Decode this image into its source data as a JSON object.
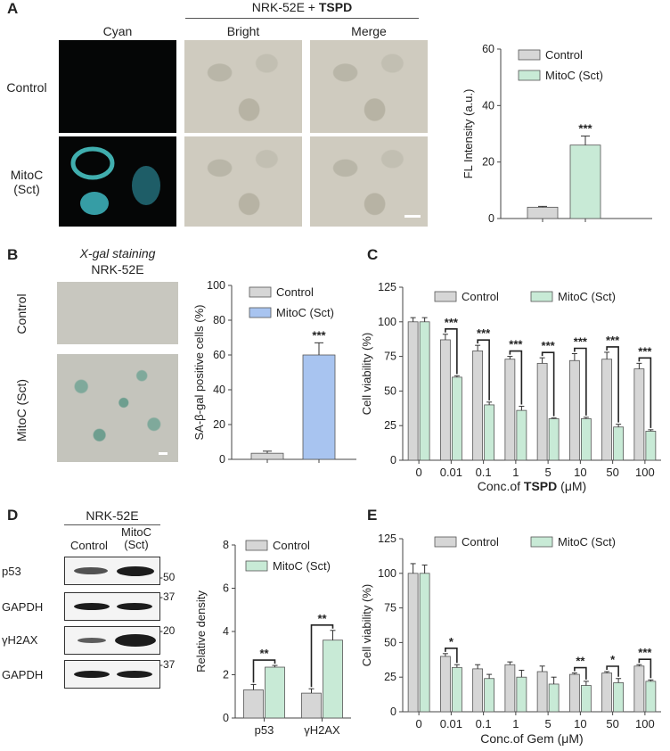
{
  "panelA": {
    "letter": "A",
    "header": "NRK-52E + TSPD",
    "columns": [
      "Cyan",
      "Bright",
      "Merge"
    ],
    "rows": [
      "Control",
      "MitoC\n(Sct)"
    ]
  },
  "panelB": {
    "letter": "B",
    "title_italic": "X-gal staining",
    "title": "NRK-52E",
    "rows": [
      "Control",
      "MitoC (Sct)"
    ]
  },
  "panelC": {
    "letter": "C"
  },
  "panelD": {
    "letter": "D",
    "header": "NRK-52E",
    "lanes": [
      "Control",
      "MitoC\n(Sct)"
    ],
    "blots": [
      "p53",
      "GAPDH",
      "γH2AX",
      "GAPDH"
    ],
    "markers": [
      "50",
      "37",
      "20",
      "37"
    ]
  },
  "panelE": {
    "letter": "E"
  },
  "colors": {
    "control": "#d6d6d6",
    "mitoc": "#c8ead6",
    "mitoc_blue": "#a8c4f0",
    "edge": "#555555"
  },
  "chart_data": [
    {
      "id": "A-bar",
      "type": "bar",
      "categories": [
        "Control",
        "MitoC (Sct)"
      ],
      "values": [
        4,
        26
      ],
      "errors": [
        0.3,
        3.2
      ],
      "significance": [
        "",
        "***"
      ],
      "ylabel": "FL Intensity (a.u.)",
      "ylim": [
        0,
        60
      ],
      "yticks": [
        0,
        20,
        40,
        60
      ],
      "legend": [
        "Control",
        "MitoC (Sct)"
      ]
    },
    {
      "id": "B-bar",
      "type": "bar",
      "categories": [
        "Control",
        "MitoC (Sct)"
      ],
      "values": [
        3.5,
        60
      ],
      "errors": [
        1.2,
        7
      ],
      "significance": [
        "",
        "***"
      ],
      "ylabel": "SA-β-gal positive cells (%)",
      "ylim": [
        0,
        100
      ],
      "yticks": [
        0,
        20,
        40,
        60,
        80,
        100
      ],
      "legend": [
        "Control",
        "MitoC (Sct)"
      ]
    },
    {
      "id": "C-bar",
      "type": "bar",
      "categories": [
        "0",
        "0.01",
        "0.1",
        "1",
        "5",
        "10",
        "50",
        "100"
      ],
      "series": [
        {
          "name": "Control",
          "values": [
            100,
            87,
            79,
            73,
            70,
            72,
            73,
            66
          ],
          "errors": [
            3,
            4,
            4,
            2,
            4,
            5,
            5,
            4
          ]
        },
        {
          "name": "MitoC (Sct)",
          "values": [
            100,
            60,
            40,
            36,
            30,
            30,
            24,
            21
          ],
          "errors": [
            3,
            1,
            2,
            3,
            0.5,
            1,
            2,
            1
          ]
        }
      ],
      "significance": [
        "",
        "***",
        "***",
        "***",
        "***",
        "***",
        "***",
        "***"
      ],
      "xlabel_prefix": "Conc.of ",
      "xlabel_bold": "TSPD",
      "xlabel_suffix": " (μM)",
      "ylabel": "Cell viability (%)",
      "ylim": [
        0,
        125
      ],
      "yticks": [
        0,
        25,
        50,
        75,
        100,
        125
      ]
    },
    {
      "id": "D-bar",
      "type": "bar",
      "categories": [
        "p53",
        "γH2AX"
      ],
      "series": [
        {
          "name": "Control",
          "values": [
            1.3,
            1.15
          ],
          "errors": [
            0.25,
            0.2
          ]
        },
        {
          "name": "MitoC (Sct)",
          "values": [
            2.35,
            3.6
          ],
          "errors": [
            0.08,
            0.45
          ]
        }
      ],
      "significance": [
        "**",
        "**"
      ],
      "ylabel": "Relative density",
      "ylim": [
        0,
        8
      ],
      "yticks": [
        0,
        2,
        4,
        6,
        8
      ]
    },
    {
      "id": "E-bar",
      "type": "bar",
      "categories": [
        "0",
        "0.01",
        "0.1",
        "1",
        "5",
        "10",
        "50",
        "100"
      ],
      "series": [
        {
          "name": "Control",
          "values": [
            100,
            40,
            31,
            34,
            29,
            27,
            28,
            33
          ],
          "errors": [
            7,
            2,
            3,
            2,
            4,
            1,
            1,
            1
          ]
        },
        {
          "name": "MitoC (Sct)",
          "values": [
            100,
            32,
            24,
            25,
            20,
            19,
            21,
            22
          ],
          "errors": [
            6,
            2,
            3,
            5,
            5,
            3,
            3,
            1
          ]
        }
      ],
      "significance": [
        "",
        "*",
        "",
        "",
        "",
        "**",
        "*",
        "***"
      ],
      "xlabel": "Conc.of Gem (μM)",
      "ylabel": "Cell viability (%)",
      "ylim": [
        0,
        125
      ],
      "yticks": [
        0,
        25,
        50,
        75,
        100,
        125
      ]
    }
  ]
}
